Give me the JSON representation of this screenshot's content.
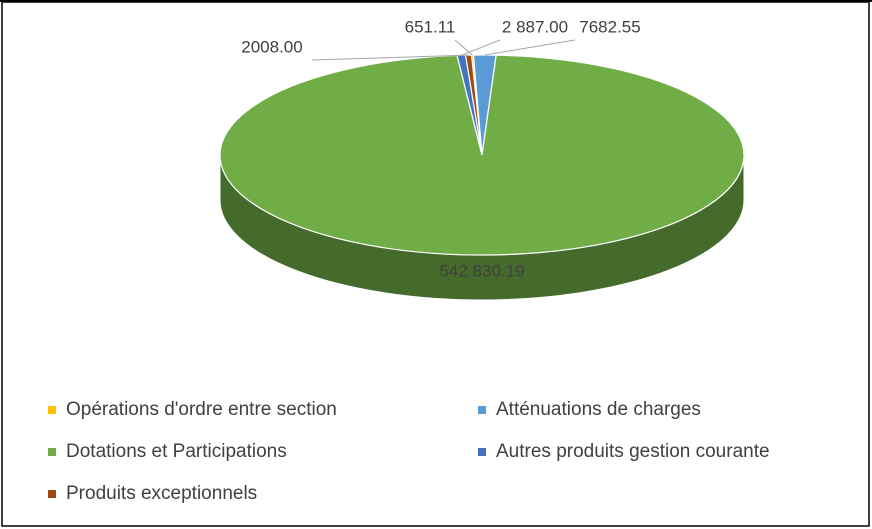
{
  "chart_data": {
    "type": "pie",
    "three_d": true,
    "categories": [
      "Opérations d'ordre entre section",
      "Atténuations de charges",
      "Dotations et Participations",
      "Autres produits gestion courante",
      "Produits exceptionnels"
    ],
    "values": [
      651.11,
      7682.55,
      542830.19,
      2887,
      2008
    ],
    "value_labels": [
      "651.11",
      "7682.55",
      "542 830.19",
      "2 887.00",
      "2008.00"
    ],
    "colors": [
      "#ffc000",
      "#5b9bd5",
      "#70ad47",
      "#4472c4",
      "#9e480e"
    ],
    "legend": "bottom"
  }
}
